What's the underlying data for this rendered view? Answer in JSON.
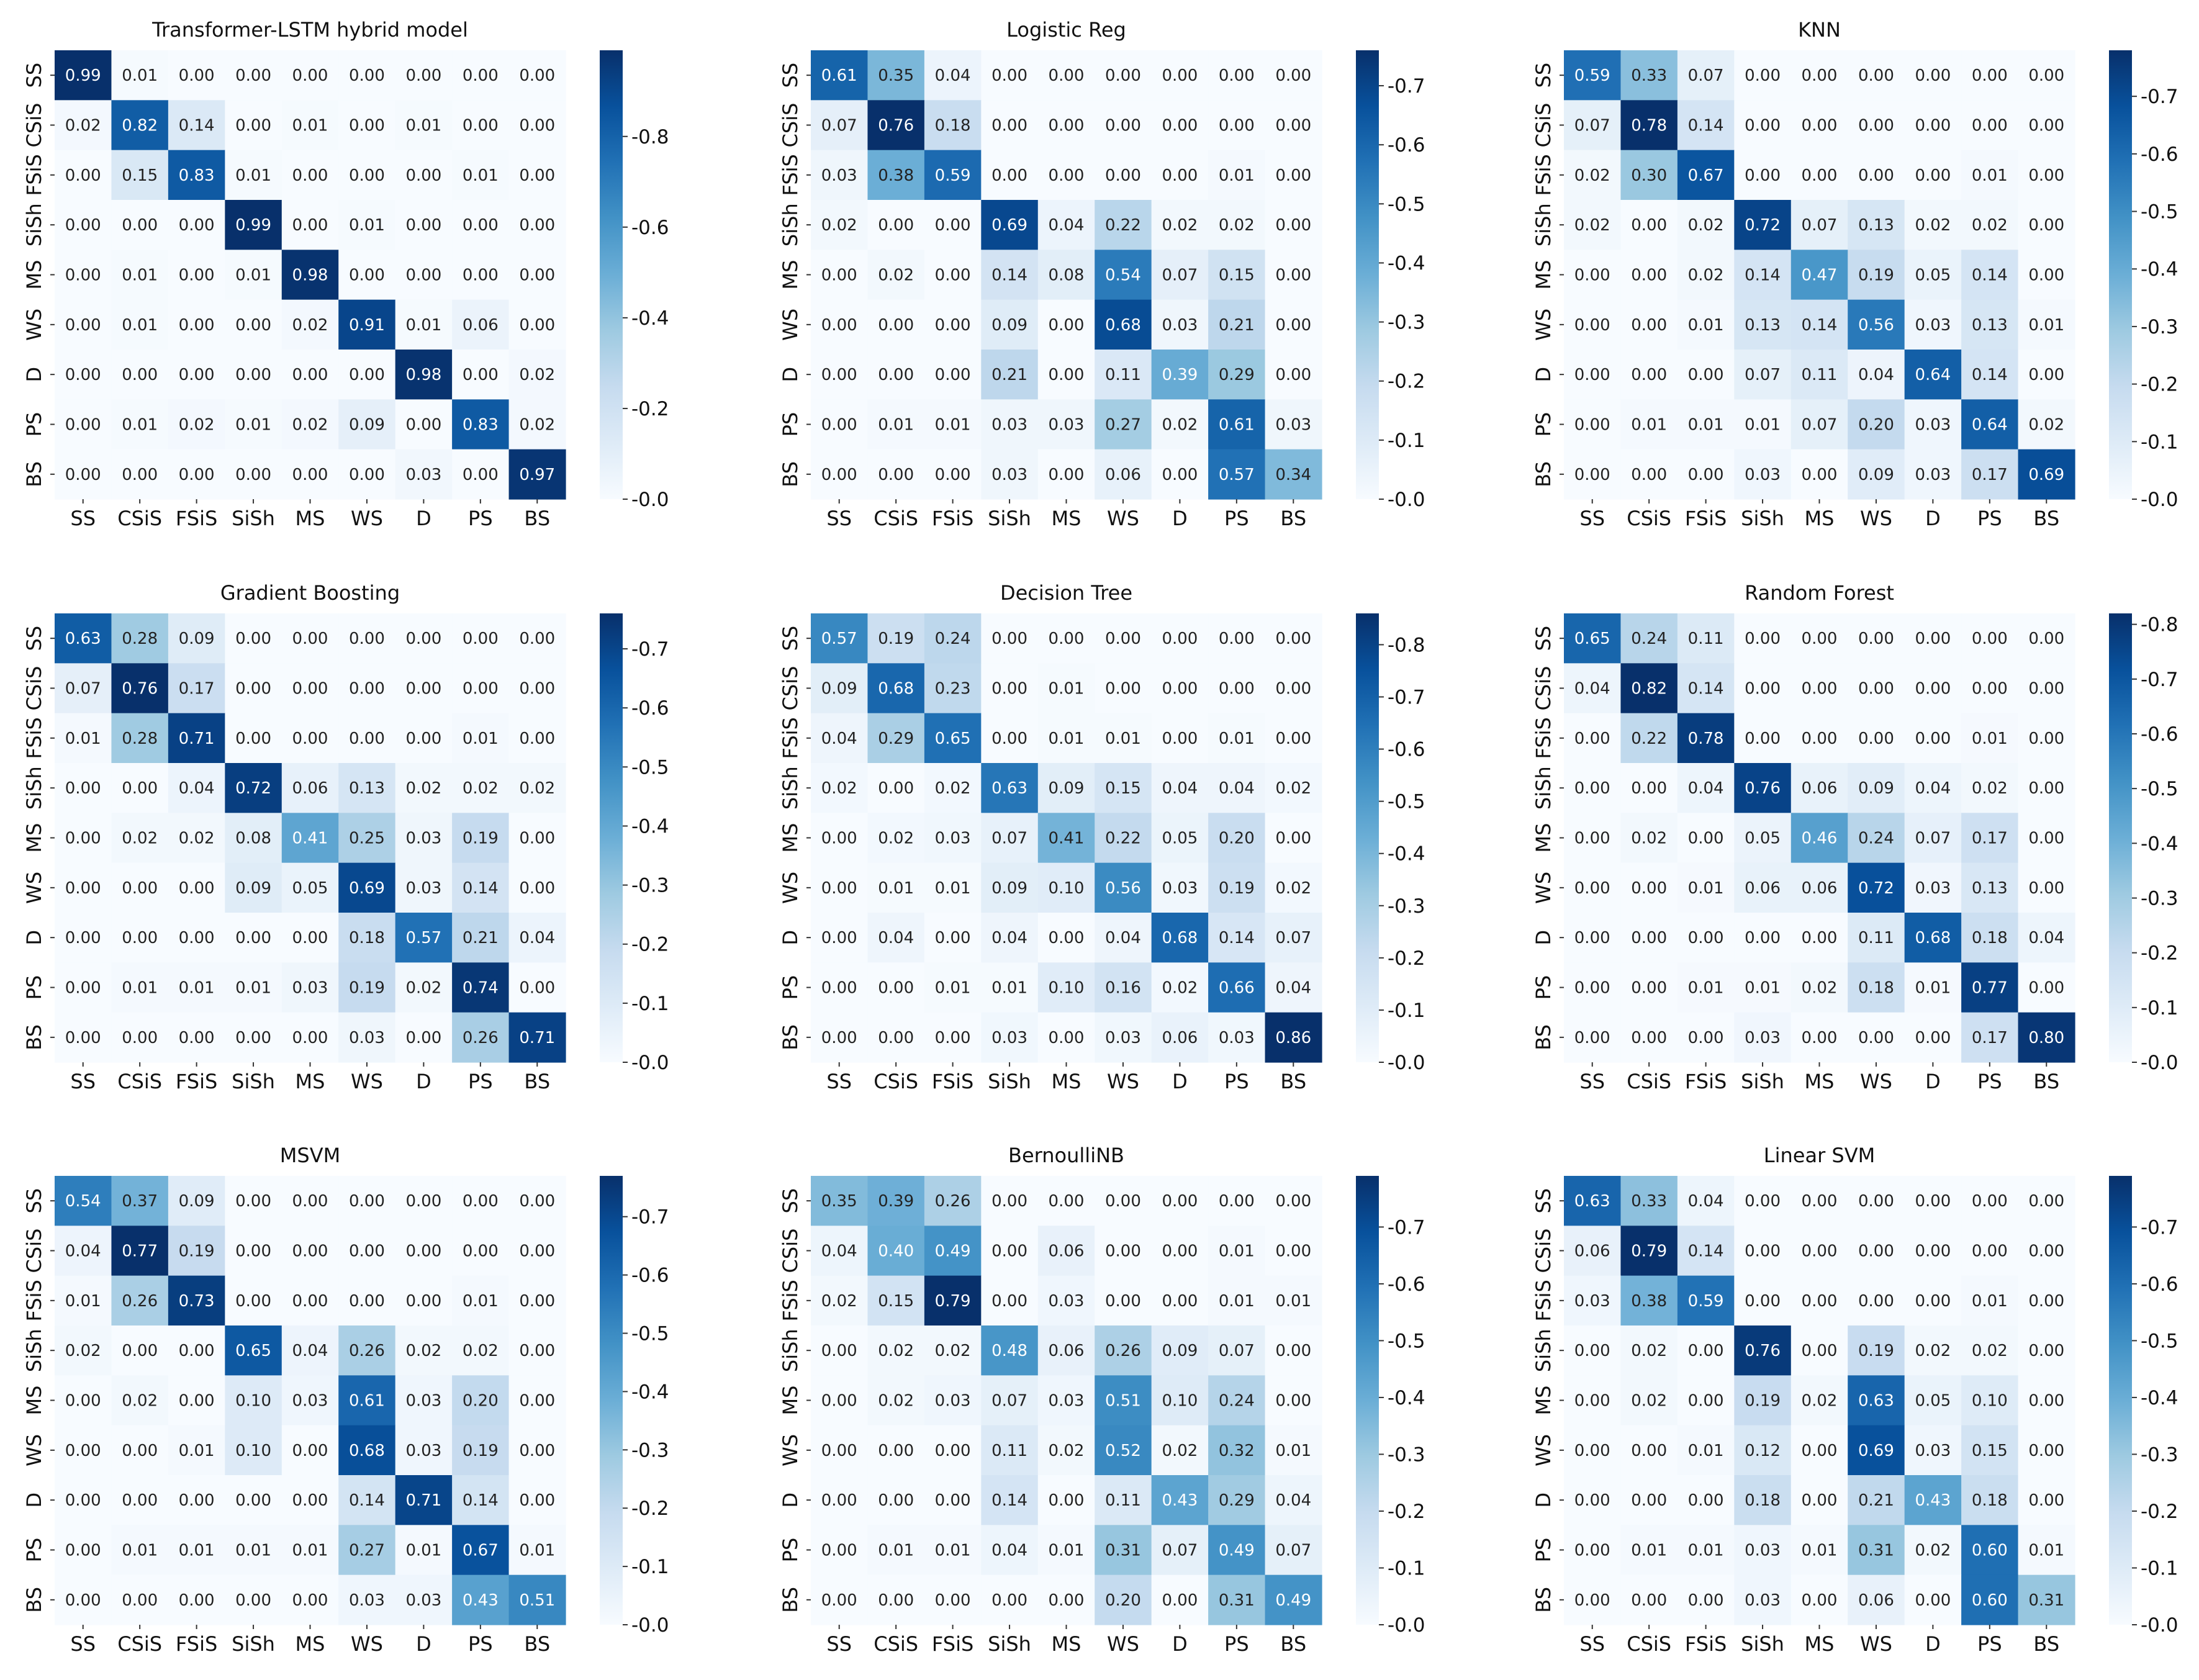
{
  "chart_data": [
    {
      "type": "heatmap",
      "title": "Transformer-LSTM hybrid model",
      "labels": [
        "SS",
        "CSiS",
        "FSiS",
        "SiSh",
        "MS",
        "WS",
        "D",
        "PS",
        "BS"
      ],
      "colorbar": {
        "max": 0.99,
        "ticks": [
          "0.0",
          "0.2",
          "0.4",
          "0.6",
          "0.8"
        ]
      },
      "values": [
        [
          "0.99",
          "0.01",
          "0.00",
          "0.00",
          "0.00",
          "0.00",
          "0.00",
          "0.00",
          "0.00"
        ],
        [
          "0.02",
          "0.82",
          "0.14",
          "0.00",
          "0.01",
          "0.00",
          "0.01",
          "0.00",
          "0.00"
        ],
        [
          "0.00",
          "0.15",
          "0.83",
          "0.01",
          "0.00",
          "0.00",
          "0.00",
          "0.01",
          "0.00"
        ],
        [
          "0.00",
          "0.00",
          "0.00",
          "0.99",
          "0.00",
          "0.01",
          "0.00",
          "0.00",
          "0.00"
        ],
        [
          "0.00",
          "0.01",
          "0.00",
          "0.01",
          "0.98",
          "0.00",
          "0.00",
          "0.00",
          "0.00"
        ],
        [
          "0.00",
          "0.01",
          "0.00",
          "0.00",
          "0.02",
          "0.91",
          "0.01",
          "0.06",
          "0.00"
        ],
        [
          "0.00",
          "0.00",
          "0.00",
          "0.00",
          "0.00",
          "0.00",
          "0.98",
          "0.00",
          "0.02"
        ],
        [
          "0.00",
          "0.01",
          "0.02",
          "0.01",
          "0.02",
          "0.09",
          "0.00",
          "0.83",
          "0.02"
        ],
        [
          "0.00",
          "0.00",
          "0.00",
          "0.00",
          "0.00",
          "0.00",
          "0.03",
          "0.00",
          "0.97"
        ]
      ]
    },
    {
      "type": "heatmap",
      "title": "Logistic Reg",
      "labels": [
        "SS",
        "CSiS",
        "FSiS",
        "SiSh",
        "MS",
        "WS",
        "D",
        "PS",
        "BS"
      ],
      "colorbar": {
        "max": 0.76,
        "ticks": [
          "0.0",
          "0.1",
          "0.2",
          "0.3",
          "0.4",
          "0.5",
          "0.6",
          "0.7"
        ]
      },
      "values": [
        [
          "0.61",
          "0.35",
          "0.04",
          "0.00",
          "0.00",
          "0.00",
          "0.00",
          "0.00",
          "0.00"
        ],
        [
          "0.07",
          "0.76",
          "0.18",
          "0.00",
          "0.00",
          "0.00",
          "0.00",
          "0.00",
          "0.00"
        ],
        [
          "0.03",
          "0.38",
          "0.59",
          "0.00",
          "0.00",
          "0.00",
          "0.00",
          "0.01",
          "0.00"
        ],
        [
          "0.02",
          "0.00",
          "0.00",
          "0.69",
          "0.04",
          "0.22",
          "0.02",
          "0.02",
          "0.00"
        ],
        [
          "0.00",
          "0.02",
          "0.00",
          "0.14",
          "0.08",
          "0.54",
          "0.07",
          "0.15",
          "0.00"
        ],
        [
          "0.00",
          "0.00",
          "0.00",
          "0.09",
          "0.00",
          "0.68",
          "0.03",
          "0.21",
          "0.00"
        ],
        [
          "0.00",
          "0.00",
          "0.00",
          "0.21",
          "0.00",
          "0.11",
          "0.39",
          "0.29",
          "0.00"
        ],
        [
          "0.00",
          "0.01",
          "0.01",
          "0.03",
          "0.03",
          "0.27",
          "0.02",
          "0.61",
          "0.03"
        ],
        [
          "0.00",
          "0.00",
          "0.00",
          "0.03",
          "0.00",
          "0.06",
          "0.00",
          "0.57",
          "0.34"
        ]
      ]
    },
    {
      "type": "heatmap",
      "title": "KNN",
      "labels": [
        "SS",
        "CSiS",
        "FSiS",
        "SiSh",
        "MS",
        "WS",
        "D",
        "PS",
        "BS"
      ],
      "colorbar": {
        "max": 0.78,
        "ticks": [
          "0.0",
          "0.1",
          "0.2",
          "0.3",
          "0.4",
          "0.5",
          "0.6",
          "0.7"
        ]
      },
      "values": [
        [
          "0.59",
          "0.33",
          "0.07",
          "0.00",
          "0.00",
          "0.00",
          "0.00",
          "0.00",
          "0.00"
        ],
        [
          "0.07",
          "0.78",
          "0.14",
          "0.00",
          "0.00",
          "0.00",
          "0.00",
          "0.00",
          "0.00"
        ],
        [
          "0.02",
          "0.30",
          "0.67",
          "0.00",
          "0.00",
          "0.00",
          "0.00",
          "0.01",
          "0.00"
        ],
        [
          "0.02",
          "0.00",
          "0.02",
          "0.72",
          "0.07",
          "0.13",
          "0.02",
          "0.02",
          "0.00"
        ],
        [
          "0.00",
          "0.00",
          "0.02",
          "0.14",
          "0.47",
          "0.19",
          "0.05",
          "0.14",
          "0.00"
        ],
        [
          "0.00",
          "0.00",
          "0.01",
          "0.13",
          "0.14",
          "0.56",
          "0.03",
          "0.13",
          "0.01"
        ],
        [
          "0.00",
          "0.00",
          "0.00",
          "0.07",
          "0.11",
          "0.04",
          "0.64",
          "0.14",
          "0.00"
        ],
        [
          "0.00",
          "0.01",
          "0.01",
          "0.01",
          "0.07",
          "0.20",
          "0.03",
          "0.64",
          "0.02"
        ],
        [
          "0.00",
          "0.00",
          "0.00",
          "0.03",
          "0.00",
          "0.09",
          "0.03",
          "0.17",
          "0.69"
        ]
      ]
    },
    {
      "type": "heatmap",
      "title": "Gradient Boosting",
      "labels": [
        "SS",
        "CSiS",
        "FSiS",
        "SiSh",
        "MS",
        "WS",
        "D",
        "PS",
        "BS"
      ],
      "colorbar": {
        "max": 0.76,
        "ticks": [
          "0.0",
          "0.1",
          "0.2",
          "0.3",
          "0.4",
          "0.5",
          "0.6",
          "0.7"
        ]
      },
      "values": [
        [
          "0.63",
          "0.28",
          "0.09",
          "0.00",
          "0.00",
          "0.00",
          "0.00",
          "0.00",
          "0.00"
        ],
        [
          "0.07",
          "0.76",
          "0.17",
          "0.00",
          "0.00",
          "0.00",
          "0.00",
          "0.00",
          "0.00"
        ],
        [
          "0.01",
          "0.28",
          "0.71",
          "0.00",
          "0.00",
          "0.00",
          "0.00",
          "0.01",
          "0.00"
        ],
        [
          "0.00",
          "0.00",
          "0.04",
          "0.72",
          "0.06",
          "0.13",
          "0.02",
          "0.02",
          "0.02"
        ],
        [
          "0.00",
          "0.02",
          "0.02",
          "0.08",
          "0.41",
          "0.25",
          "0.03",
          "0.19",
          "0.00"
        ],
        [
          "0.00",
          "0.00",
          "0.00",
          "0.09",
          "0.05",
          "0.69",
          "0.03",
          "0.14",
          "0.00"
        ],
        [
          "0.00",
          "0.00",
          "0.00",
          "0.00",
          "0.00",
          "0.18",
          "0.57",
          "0.21",
          "0.04"
        ],
        [
          "0.00",
          "0.01",
          "0.01",
          "0.01",
          "0.03",
          "0.19",
          "0.02",
          "0.74",
          "0.00"
        ],
        [
          "0.00",
          "0.00",
          "0.00",
          "0.00",
          "0.00",
          "0.03",
          "0.00",
          "0.26",
          "0.71"
        ]
      ]
    },
    {
      "type": "heatmap",
      "title": "Decision Tree",
      "labels": [
        "SS",
        "CSiS",
        "FSiS",
        "SiSh",
        "MS",
        "WS",
        "D",
        "PS",
        "BS"
      ],
      "colorbar": {
        "max": 0.86,
        "ticks": [
          "0.0",
          "0.1",
          "0.2",
          "0.3",
          "0.4",
          "0.5",
          "0.6",
          "0.7",
          "0.8"
        ]
      },
      "values": [
        [
          "0.57",
          "0.19",
          "0.24",
          "0.00",
          "0.00",
          "0.00",
          "0.00",
          "0.00",
          "0.00"
        ],
        [
          "0.09",
          "0.68",
          "0.23",
          "0.00",
          "0.01",
          "0.00",
          "0.00",
          "0.00",
          "0.00"
        ],
        [
          "0.04",
          "0.29",
          "0.65",
          "0.00",
          "0.01",
          "0.01",
          "0.00",
          "0.01",
          "0.00"
        ],
        [
          "0.02",
          "0.00",
          "0.02",
          "0.63",
          "0.09",
          "0.15",
          "0.04",
          "0.04",
          "0.02"
        ],
        [
          "0.00",
          "0.02",
          "0.03",
          "0.07",
          "0.41",
          "0.22",
          "0.05",
          "0.20",
          "0.00"
        ],
        [
          "0.00",
          "0.01",
          "0.01",
          "0.09",
          "0.10",
          "0.56",
          "0.03",
          "0.19",
          "0.02"
        ],
        [
          "0.00",
          "0.04",
          "0.00",
          "0.04",
          "0.00",
          "0.04",
          "0.68",
          "0.14",
          "0.07"
        ],
        [
          "0.00",
          "0.00",
          "0.01",
          "0.01",
          "0.10",
          "0.16",
          "0.02",
          "0.66",
          "0.04"
        ],
        [
          "0.00",
          "0.00",
          "0.00",
          "0.03",
          "0.00",
          "0.03",
          "0.06",
          "0.03",
          "0.86"
        ]
      ]
    },
    {
      "type": "heatmap",
      "title": "Random Forest",
      "labels": [
        "SS",
        "CSiS",
        "FSiS",
        "SiSh",
        "MS",
        "WS",
        "D",
        "PS",
        "BS"
      ],
      "colorbar": {
        "max": 0.82,
        "ticks": [
          "0.0",
          "0.1",
          "0.2",
          "0.3",
          "0.4",
          "0.5",
          "0.6",
          "0.7",
          "0.8"
        ]
      },
      "values": [
        [
          "0.65",
          "0.24",
          "0.11",
          "0.00",
          "0.00",
          "0.00",
          "0.00",
          "0.00",
          "0.00"
        ],
        [
          "0.04",
          "0.82",
          "0.14",
          "0.00",
          "0.00",
          "0.00",
          "0.00",
          "0.00",
          "0.00"
        ],
        [
          "0.00",
          "0.22",
          "0.78",
          "0.00",
          "0.00",
          "0.00",
          "0.00",
          "0.01",
          "0.00"
        ],
        [
          "0.00",
          "0.00",
          "0.04",
          "0.76",
          "0.06",
          "0.09",
          "0.04",
          "0.02",
          "0.00"
        ],
        [
          "0.00",
          "0.02",
          "0.00",
          "0.05",
          "0.46",
          "0.24",
          "0.07",
          "0.17",
          "0.00"
        ],
        [
          "0.00",
          "0.00",
          "0.01",
          "0.06",
          "0.06",
          "0.72",
          "0.03",
          "0.13",
          "0.00"
        ],
        [
          "0.00",
          "0.00",
          "0.00",
          "0.00",
          "0.00",
          "0.11",
          "0.68",
          "0.18",
          "0.04"
        ],
        [
          "0.00",
          "0.00",
          "0.01",
          "0.01",
          "0.02",
          "0.18",
          "0.01",
          "0.77",
          "0.00"
        ],
        [
          "0.00",
          "0.00",
          "0.00",
          "0.03",
          "0.00",
          "0.00",
          "0.00",
          "0.17",
          "0.80"
        ]
      ]
    },
    {
      "type": "heatmap",
      "title": "MSVM",
      "labels": [
        "SS",
        "CSiS",
        "FSiS",
        "SiSh",
        "MS",
        "WS",
        "D",
        "PS",
        "BS"
      ],
      "colorbar": {
        "max": 0.77,
        "ticks": [
          "0.0",
          "0.1",
          "0.2",
          "0.3",
          "0.4",
          "0.5",
          "0.6",
          "0.7"
        ]
      },
      "values": [
        [
          "0.54",
          "0.37",
          "0.09",
          "0.00",
          "0.00",
          "0.00",
          "0.00",
          "0.00",
          "0.00"
        ],
        [
          "0.04",
          "0.77",
          "0.19",
          "0.00",
          "0.00",
          "0.00",
          "0.00",
          "0.00",
          "0.00"
        ],
        [
          "0.01",
          "0.26",
          "0.73",
          "0.00",
          "0.00",
          "0.00",
          "0.00",
          "0.01",
          "0.00"
        ],
        [
          "0.02",
          "0.00",
          "0.00",
          "0.65",
          "0.04",
          "0.26",
          "0.02",
          "0.02",
          "0.00"
        ],
        [
          "0.00",
          "0.02",
          "0.00",
          "0.10",
          "0.03",
          "0.61",
          "0.03",
          "0.20",
          "0.00"
        ],
        [
          "0.00",
          "0.00",
          "0.01",
          "0.10",
          "0.00",
          "0.68",
          "0.03",
          "0.19",
          "0.00"
        ],
        [
          "0.00",
          "0.00",
          "0.00",
          "0.00",
          "0.00",
          "0.14",
          "0.71",
          "0.14",
          "0.00"
        ],
        [
          "0.00",
          "0.01",
          "0.01",
          "0.01",
          "0.01",
          "0.27",
          "0.01",
          "0.67",
          "0.01"
        ],
        [
          "0.00",
          "0.00",
          "0.00",
          "0.00",
          "0.00",
          "0.03",
          "0.03",
          "0.43",
          "0.51"
        ]
      ]
    },
    {
      "type": "heatmap",
      "title": "BernoulliNB",
      "labels": [
        "SS",
        "CSiS",
        "FSiS",
        "SiSh",
        "MS",
        "WS",
        "D",
        "PS",
        "BS"
      ],
      "colorbar": {
        "max": 0.79,
        "ticks": [
          "0.0",
          "0.1",
          "0.2",
          "0.3",
          "0.4",
          "0.5",
          "0.6",
          "0.7"
        ]
      },
      "values": [
        [
          "0.35",
          "0.39",
          "0.26",
          "0.00",
          "0.00",
          "0.00",
          "0.00",
          "0.00",
          "0.00"
        ],
        [
          "0.04",
          "0.40",
          "0.49",
          "0.00",
          "0.06",
          "0.00",
          "0.00",
          "0.01",
          "0.00"
        ],
        [
          "0.02",
          "0.15",
          "0.79",
          "0.00",
          "0.03",
          "0.00",
          "0.00",
          "0.01",
          "0.01"
        ],
        [
          "0.00",
          "0.02",
          "0.02",
          "0.48",
          "0.06",
          "0.26",
          "0.09",
          "0.07",
          "0.00"
        ],
        [
          "0.00",
          "0.02",
          "0.03",
          "0.07",
          "0.03",
          "0.51",
          "0.10",
          "0.24",
          "0.00"
        ],
        [
          "0.00",
          "0.00",
          "0.00",
          "0.11",
          "0.02",
          "0.52",
          "0.02",
          "0.32",
          "0.01"
        ],
        [
          "0.00",
          "0.00",
          "0.00",
          "0.14",
          "0.00",
          "0.11",
          "0.43",
          "0.29",
          "0.04"
        ],
        [
          "0.00",
          "0.01",
          "0.01",
          "0.04",
          "0.01",
          "0.31",
          "0.07",
          "0.49",
          "0.07"
        ],
        [
          "0.00",
          "0.00",
          "0.00",
          "0.00",
          "0.00",
          "0.20",
          "0.00",
          "0.31",
          "0.49"
        ]
      ]
    },
    {
      "type": "heatmap",
      "title": "Linear SVM",
      "labels": [
        "SS",
        "CSiS",
        "FSiS",
        "SiSh",
        "MS",
        "WS",
        "D",
        "PS",
        "BS"
      ],
      "colorbar": {
        "max": 0.79,
        "ticks": [
          "0.0",
          "0.1",
          "0.2",
          "0.3",
          "0.4",
          "0.5",
          "0.6",
          "0.7"
        ]
      },
      "values": [
        [
          "0.63",
          "0.33",
          "0.04",
          "0.00",
          "0.00",
          "0.00",
          "0.00",
          "0.00",
          "0.00"
        ],
        [
          "0.06",
          "0.79",
          "0.14",
          "0.00",
          "0.00",
          "0.00",
          "0.00",
          "0.00",
          "0.00"
        ],
        [
          "0.03",
          "0.38",
          "0.59",
          "0.00",
          "0.00",
          "0.00",
          "0.00",
          "0.01",
          "0.00"
        ],
        [
          "0.00",
          "0.02",
          "0.00",
          "0.76",
          "0.00",
          "0.19",
          "0.02",
          "0.02",
          "0.00"
        ],
        [
          "0.00",
          "0.02",
          "0.00",
          "0.19",
          "0.02",
          "0.63",
          "0.05",
          "0.10",
          "0.00"
        ],
        [
          "0.00",
          "0.00",
          "0.01",
          "0.12",
          "0.00",
          "0.69",
          "0.03",
          "0.15",
          "0.00"
        ],
        [
          "0.00",
          "0.00",
          "0.00",
          "0.18",
          "0.00",
          "0.21",
          "0.43",
          "0.18",
          "0.00"
        ],
        [
          "0.00",
          "0.01",
          "0.01",
          "0.03",
          "0.01",
          "0.31",
          "0.02",
          "0.60",
          "0.01"
        ],
        [
          "0.00",
          "0.00",
          "0.00",
          "0.03",
          "0.00",
          "0.06",
          "0.00",
          "0.60",
          "0.31"
        ]
      ]
    }
  ]
}
